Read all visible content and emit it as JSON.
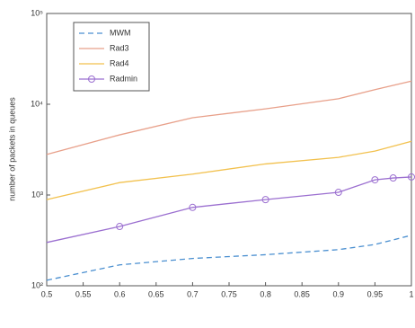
{
  "chart_data": {
    "type": "line",
    "ylabel": "number of packets in queues",
    "log_y": true,
    "xlim": [
      0.5,
      1
    ],
    "xticks": [
      0.5,
      0.55,
      0.6,
      0.65,
      0.7,
      0.75,
      0.8,
      0.85,
      0.9,
      0.95,
      1
    ],
    "ylim": [
      100,
      100000
    ],
    "yticks": [
      {
        "value": 100,
        "label": "10²"
      },
      {
        "value": 1000,
        "label": "10³"
      },
      {
        "value": 10000,
        "label": "10⁴"
      },
      {
        "value": 100000,
        "label": "10⁵"
      }
    ],
    "legend": "upper left",
    "series": [
      {
        "name": "MWM",
        "color": "#4a8fd0",
        "dash": true,
        "marker": false,
        "x": [
          0.5,
          0.6,
          0.7,
          0.8,
          0.9,
          0.95,
          1
        ],
        "values": [
          115,
          170,
          200,
          220,
          250,
          285,
          360
        ]
      },
      {
        "name": "Rad3",
        "color": "#e8a08a",
        "dash": false,
        "marker": false,
        "x": [
          0.5,
          0.6,
          0.7,
          0.8,
          0.9,
          0.95,
          1
        ],
        "values": [
          2800,
          4600,
          7100,
          8900,
          11500,
          14500,
          18000
        ]
      },
      {
        "name": "Rad4",
        "color": "#f2c14e",
        "dash": false,
        "marker": false,
        "x": [
          0.5,
          0.6,
          0.7,
          0.8,
          0.9,
          0.95,
          1
        ],
        "values": [
          890,
          1370,
          1700,
          2200,
          2600,
          3050,
          3900
        ]
      },
      {
        "name": "Radmin",
        "color": "#9b6fd0",
        "dash": false,
        "marker": true,
        "x": [
          0.5,
          0.6,
          0.7,
          0.8,
          0.9,
          0.95,
          0.975,
          1
        ],
        "values": [
          300,
          450,
          730,
          890,
          1070,
          1470,
          1540,
          1580
        ]
      }
    ]
  }
}
